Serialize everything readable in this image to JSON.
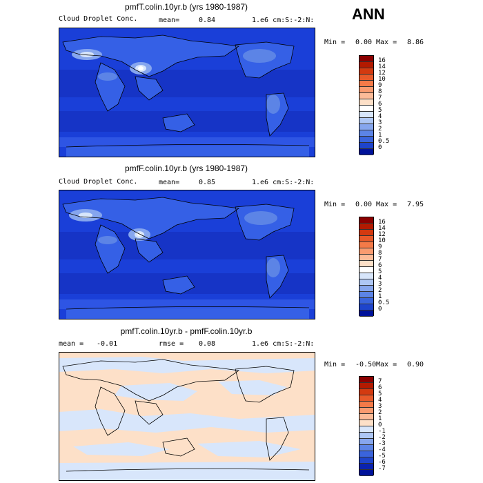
{
  "season": "ANN",
  "panels": [
    {
      "title": "pmfT.colin.10yr.b (yrs 1980-1987)",
      "left_text": "Cloud Droplet Conc.",
      "mid_label": "mean=",
      "mid_value": "0.84",
      "right_text": "1.e6 cm:S:-2:N:",
      "min_label": "Min =",
      "min_value": "0.00",
      "max_label": "Max =",
      "max_value": "8.86",
      "colorbar_labels": [
        "16",
        "14",
        "12",
        "10",
        "9",
        "8",
        "7",
        "6",
        "5",
        "4",
        "3",
        "2",
        "1",
        "0.5",
        "0"
      ],
      "colorbar_colors": [
        "#8b0000",
        "#b31a00",
        "#d33a10",
        "#e85a2a",
        "#f47a48",
        "#f99b70",
        "#fcbb98",
        "#fde0c8",
        "#ffffff",
        "#d8e6fb",
        "#aec7f5",
        "#86a6ee",
        "#5c84e6",
        "#3a64dc",
        "#1e44cc",
        "#00129a"
      ]
    },
    {
      "title": "pmfF.colin.10yr.b (yrs 1980-1987)",
      "left_text": "Cloud Droplet Conc.",
      "mid_label": "mean=",
      "mid_value": "0.85",
      "right_text": "1.e6 cm:S:-2:N:",
      "min_label": "Min =",
      "min_value": "0.00",
      "max_label": "Max =",
      "max_value": "7.95",
      "colorbar_labels": [
        "16",
        "14",
        "12",
        "10",
        "9",
        "8",
        "7",
        "6",
        "5",
        "4",
        "3",
        "2",
        "1",
        "0.5",
        "0"
      ],
      "colorbar_colors": [
        "#8b0000",
        "#b31a00",
        "#d33a10",
        "#e85a2a",
        "#f47a48",
        "#f99b70",
        "#fcbb98",
        "#fde0c8",
        "#ffffff",
        "#d8e6fb",
        "#aec7f5",
        "#86a6ee",
        "#5c84e6",
        "#3a64dc",
        "#1e44cc",
        "#00129a"
      ]
    },
    {
      "title": "pmfT.colin.10yr.b - pmfF.colin.10yr.b",
      "left_text": "mean =",
      "left_value": "-0.01",
      "mid_label": "rmse =",
      "mid_value": "0.08",
      "right_text": "1.e6 cm:S:-2:N:",
      "min_label": "Min =",
      "min_value": "-0.50",
      "max_label": "Max =",
      "max_value": "0.90",
      "colorbar_labels": [
        "7",
        "6",
        "5",
        "4",
        "3",
        "2",
        "1",
        "0",
        "-1",
        "-2",
        "-3",
        "-4",
        "-5",
        "-6",
        "-7"
      ],
      "colorbar_colors": [
        "#8b0000",
        "#b31a00",
        "#d33a10",
        "#e85a2a",
        "#f47a48",
        "#f99b70",
        "#fcbb98",
        "#fde0c8",
        "#d8e6fb",
        "#aec7f5",
        "#86a6ee",
        "#5c84e6",
        "#3a64dc",
        "#1e44cc",
        "#0a22b0",
        "#00129a"
      ]
    }
  ]
}
